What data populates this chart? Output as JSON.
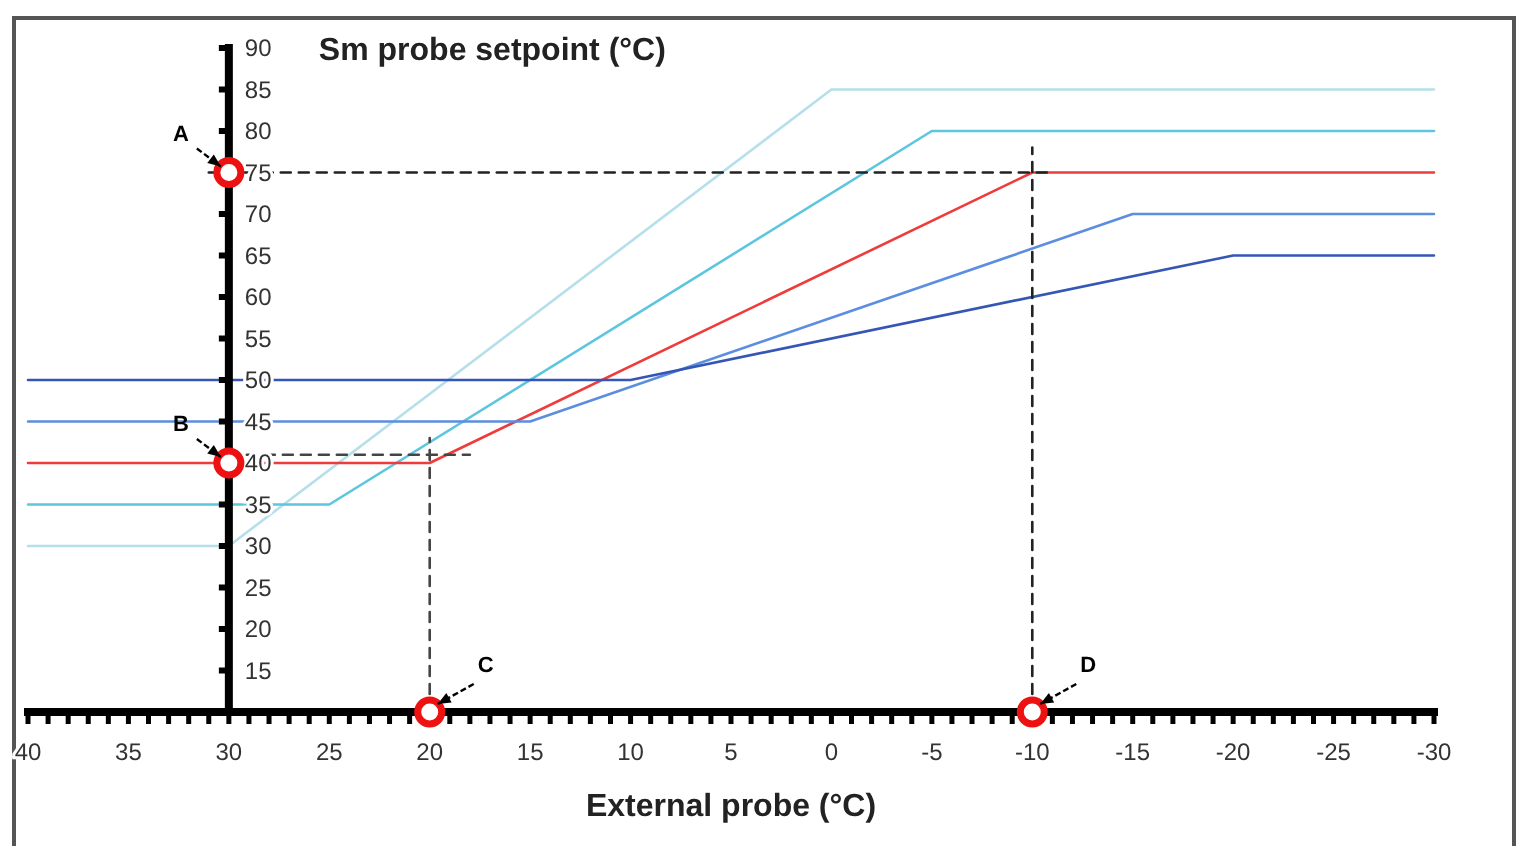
{
  "chart_data": {
    "type": "line",
    "title": "Sm probe setpoint (°C)",
    "xlabel": "External probe (°C)",
    "xlim": [
      40,
      -30
    ],
    "ylim": [
      10,
      90
    ],
    "xticks": [
      40,
      {
        "value": 39,
        "label": null
      },
      {
        "value": 38,
        "label": null
      },
      {
        "value": 37,
        "label": null
      },
      {
        "value": 36,
        "label": null
      },
      35,
      {
        "value": 34,
        "label": null
      },
      {
        "value": 33,
        "label": null
      },
      {
        "value": 32,
        "label": null
      },
      {
        "value": 31,
        "label": null
      },
      30,
      {
        "value": 29,
        "label": null
      },
      {
        "value": 28,
        "label": null
      },
      {
        "value": 27,
        "label": null
      },
      {
        "value": 26,
        "label": null
      },
      25,
      {
        "value": 24,
        "label": null
      },
      {
        "value": 23,
        "label": null
      },
      {
        "value": 22,
        "label": null
      },
      {
        "value": 21,
        "label": null
      },
      20,
      {
        "value": 19,
        "label": null
      },
      {
        "value": 18,
        "label": null
      },
      {
        "value": 17,
        "label": null
      },
      {
        "value": 16,
        "label": null
      },
      15,
      {
        "value": 14,
        "label": null
      },
      {
        "value": 13,
        "label": null
      },
      {
        "value": 12,
        "label": null
      },
      {
        "value": 11,
        "label": null
      },
      10,
      {
        "value": 9,
        "label": null
      },
      {
        "value": 8,
        "label": null
      },
      {
        "value": 7,
        "label": null
      },
      {
        "value": 6,
        "label": null
      },
      5,
      {
        "value": 4,
        "label": null
      },
      {
        "value": 3,
        "label": null
      },
      {
        "value": 2,
        "label": null
      },
      {
        "value": 1,
        "label": null
      },
      0,
      {
        "value": -1,
        "label": null
      },
      {
        "value": -2,
        "label": null
      },
      {
        "value": -3,
        "label": null
      },
      {
        "value": -4,
        "label": null
      },
      -5,
      {
        "value": -6,
        "label": null
      },
      {
        "value": -7,
        "label": null
      },
      {
        "value": -8,
        "label": null
      },
      {
        "value": -9,
        "label": null
      },
      -10,
      {
        "value": -11,
        "label": null
      },
      {
        "value": -12,
        "label": null
      },
      {
        "value": -13,
        "label": null
      },
      {
        "value": -14,
        "label": null
      },
      -15,
      {
        "value": -16,
        "label": null
      },
      {
        "value": -17,
        "label": null
      },
      {
        "value": -18,
        "label": null
      },
      {
        "value": -19,
        "label": null
      },
      -20,
      {
        "value": -21,
        "label": null
      },
      {
        "value": -22,
        "label": null
      },
      {
        "value": -23,
        "label": null
      },
      {
        "value": -24,
        "label": null
      },
      -25,
      {
        "value": -26,
        "label": null
      },
      {
        "value": -27,
        "label": null
      },
      {
        "value": -28,
        "label": null
      },
      {
        "value": -29,
        "label": null
      },
      -30
    ],
    "yticks": [
      {
        "value": 10,
        "label": null
      },
      15,
      20,
      25,
      30,
      35,
      40,
      45,
      50,
      55,
      60,
      65,
      70,
      75,
      80,
      85,
      90
    ],
    "grid": false,
    "series": [
      {
        "color": "#b5dfea",
        "x": [
          40,
          30,
          0,
          -30
        ],
        "values": [
          30,
          30,
          85,
          85
        ]
      },
      {
        "color": "#5cc6de",
        "x": [
          40,
          25,
          -5,
          -30
        ],
        "values": [
          35,
          35,
          80,
          80
        ]
      },
      {
        "color": "#ee3b3b",
        "x": [
          40,
          20,
          -10,
          -30
        ],
        "values": [
          40,
          40,
          75,
          75
        ]
      },
      {
        "color": "#5b8ee0",
        "x": [
          40,
          15,
          -15,
          -30
        ],
        "values": [
          45,
          45,
          70,
          70
        ]
      },
      {
        "color": "#3556b5",
        "x": [
          40,
          10,
          -20,
          -30
        ],
        "values": [
          50,
          50,
          65,
          65
        ]
      },
      {
        "color": "#222222",
        "line_style": "dashed",
        "x": [
          31,
          -11
        ],
        "values": [
          75,
          75
        ]
      },
      {
        "color": "#222222",
        "line_style": "dashed",
        "x": [
          -10,
          -10
        ],
        "values": [
          10,
          78
        ]
      },
      {
        "color": "#444444",
        "line_style": "dashed",
        "x": [
          30,
          18
        ],
        "values": [
          41,
          41
        ]
      },
      {
        "color": "#444444",
        "line_style": "dashed",
        "x": [
          20,
          20
        ],
        "values": [
          10,
          43
        ]
      },
      {
        "type": "scatter",
        "marker": "circle",
        "color": "#ee1111",
        "x": [
          30,
          30,
          20,
          -10
        ],
        "values": [
          75,
          40,
          10,
          10
        ]
      }
    ],
    "annotations": [
      {
        "text": "A",
        "x": 30,
        "y": 75
      },
      {
        "text": "B",
        "x": 30,
        "y": 40
      },
      {
        "text": "C",
        "x": 20,
        "y": 10
      },
      {
        "text": "D",
        "x": -10,
        "y": 10
      }
    ]
  }
}
